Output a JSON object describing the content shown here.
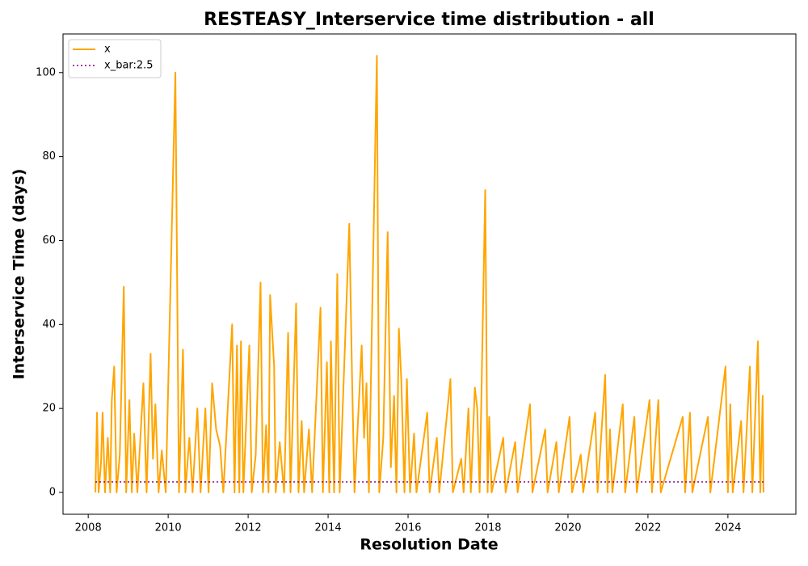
{
  "chart_data": {
    "type": "line",
    "title": "RESTEASY_Interservice time distribution - all",
    "xlabel": "Resolution Date",
    "ylabel": "Interservice Time (days)",
    "xlim": [
      2007.37,
      2025.7
    ],
    "ylim": [
      -5.2,
      109.2
    ],
    "xticks": [
      2008,
      2010,
      2012,
      2014,
      2016,
      2018,
      2020,
      2022,
      2024
    ],
    "yticks": [
      0,
      20,
      40,
      60,
      80,
      100
    ],
    "legend": "upper left",
    "grid": false,
    "series": [
      {
        "name": "x",
        "color": "orange",
        "style": "solid",
        "x": [
          2008.18,
          2008.22,
          2008.26,
          2008.32,
          2008.36,
          2008.42,
          2008.49,
          2008.55,
          2008.59,
          2008.65,
          2008.71,
          2008.79,
          2008.89,
          2008.95,
          2009.03,
          2009.09,
          2009.15,
          2009.23,
          2009.38,
          2009.46,
          2009.56,
          2009.62,
          2009.68,
          2009.76,
          2009.84,
          2009.94,
          2010.18,
          2010.27,
          2010.37,
          2010.43,
          2010.53,
          2010.61,
          2010.73,
          2010.81,
          2010.93,
          2011.01,
          2011.1,
          2011.2,
          2011.3,
          2011.38,
          2011.6,
          2011.66,
          2011.72,
          2011.78,
          2011.82,
          2011.88,
          2012.03,
          2012.09,
          2012.19,
          2012.31,
          2012.37,
          2012.45,
          2012.51,
          2012.55,
          2012.65,
          2012.69,
          2012.79,
          2012.9,
          2013.0,
          2013.06,
          2013.2,
          2013.26,
          2013.34,
          2013.4,
          2013.52,
          2013.6,
          2013.81,
          2013.87,
          2013.97,
          2014.03,
          2014.07,
          2014.15,
          2014.23,
          2014.29,
          2014.53,
          2014.6,
          2014.66,
          2014.84,
          2014.9,
          2014.96,
          2015.02,
          2015.22,
          2015.28,
          2015.38,
          2015.49,
          2015.57,
          2015.65,
          2015.71,
          2015.77,
          2015.83,
          2015.91,
          2015.97,
          2016.05,
          2016.15,
          2016.21,
          2016.48,
          2016.54,
          2016.72,
          2016.78,
          2017.06,
          2017.12,
          2017.33,
          2017.39,
          2017.51,
          2017.57,
          2017.67,
          2017.73,
          2017.79,
          2017.93,
          2017.99,
          2018.03,
          2018.09,
          2018.38,
          2018.44,
          2018.68,
          2018.74,
          2019.05,
          2019.11,
          2019.43,
          2019.49,
          2019.71,
          2019.77,
          2020.04,
          2020.1,
          2020.32,
          2020.38,
          2020.68,
          2020.74,
          2020.93,
          2020.99,
          2021.05,
          2021.11,
          2021.37,
          2021.43,
          2021.66,
          2021.72,
          2022.04,
          2022.1,
          2022.26,
          2022.32,
          2022.87,
          2022.93,
          2023.05,
          2023.11,
          2023.5,
          2023.56,
          2023.94,
          2024.0,
          2024.06,
          2024.12,
          2024.33,
          2024.39,
          2024.55,
          2024.61,
          2024.75,
          2024.81,
          2024.87,
          2024.89
        ],
        "values": [
          0,
          19,
          0,
          7,
          19,
          0,
          13,
          0,
          22,
          30,
          0,
          9,
          49,
          0,
          22,
          0,
          14,
          0,
          26,
          0,
          33,
          8,
          21,
          0,
          10,
          0,
          100,
          0,
          34,
          0,
          13,
          0,
          20,
          0,
          20,
          0,
          26,
          15,
          11,
          0,
          40,
          0,
          35,
          0,
          36,
          0,
          35,
          0,
          9,
          50,
          0,
          16,
          0,
          47,
          30,
          0,
          12,
          0,
          38,
          0,
          45,
          0,
          17,
          0,
          15,
          0,
          44,
          0,
          31,
          0,
          36,
          0,
          52,
          0,
          64,
          27,
          0,
          35,
          13,
          26,
          0,
          104,
          0,
          13,
          62,
          6,
          23,
          0,
          39,
          27,
          0,
          27,
          0,
          14,
          0,
          19,
          0,
          13,
          0,
          27,
          0,
          8,
          0,
          20,
          0,
          25,
          20,
          0,
          72,
          0,
          18,
          0,
          13,
          0,
          12,
          0,
          21,
          0,
          15,
          0,
          12,
          0,
          18,
          0,
          9,
          0,
          19,
          0,
          28,
          0,
          15,
          0,
          21,
          0,
          18,
          0,
          22,
          0,
          22,
          0,
          18,
          0,
          19,
          0,
          18,
          0,
          30,
          0,
          21,
          0,
          17,
          0,
          30,
          0,
          36,
          0,
          23,
          0
        ]
      },
      {
        "name": "x_bar:2.5",
        "color": "purple",
        "style": "dotted",
        "x": [
          2008.18,
          2024.89
        ],
        "values": [
          2.5,
          2.5
        ]
      }
    ]
  }
}
